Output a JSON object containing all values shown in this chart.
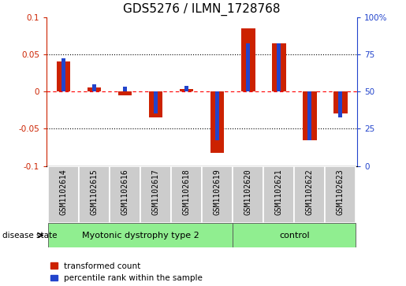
{
  "title": "GDS5276 / ILMN_1728768",
  "samples": [
    "GSM1102614",
    "GSM1102615",
    "GSM1102616",
    "GSM1102617",
    "GSM1102618",
    "GSM1102619",
    "GSM1102620",
    "GSM1102621",
    "GSM1102622",
    "GSM1102623"
  ],
  "red_values": [
    0.04,
    0.005,
    -0.005,
    -0.035,
    0.003,
    -0.082,
    0.085,
    0.065,
    -0.065,
    -0.03
  ],
  "blue_values": [
    0.045,
    0.01,
    0.007,
    -0.03,
    0.008,
    -0.065,
    0.065,
    0.065,
    -0.065,
    -0.035
  ],
  "ylim": [
    -0.1,
    0.1
  ],
  "yticks_left": [
    -0.1,
    -0.05,
    0.0,
    0.05,
    0.1
  ],
  "yticks_right": [
    0,
    25,
    50,
    75,
    100
  ],
  "y_right_positions": [
    -0.1,
    -0.05,
    0.0,
    0.05,
    0.1
  ],
  "group1_label": "Myotonic dystrophy type 2",
  "group1_indices": [
    0,
    1,
    2,
    3,
    4,
    5
  ],
  "group2_label": "control",
  "group2_indices": [
    6,
    7,
    8,
    9
  ],
  "disease_state_label": "disease state",
  "legend_red": "transformed count",
  "legend_blue": "percentile rank within the sample",
  "red_color": "#cc2200",
  "blue_color": "#2244cc",
  "group_bg": "#90EE90",
  "sample_bg": "#cccccc",
  "title_fontsize": 11,
  "tick_fontsize": 7.5,
  "label_fontsize": 7
}
